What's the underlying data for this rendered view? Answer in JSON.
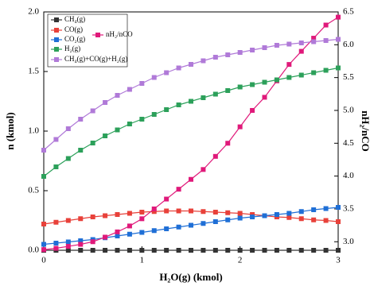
{
  "chart_data": {
    "type": "line",
    "x_label": "H₂O(g) (kmol)",
    "y_label": "n (kmol)",
    "y2_label": "nH₂/nCO",
    "x": [
      0,
      0.125,
      0.25,
      0.375,
      0.5,
      0.625,
      0.75,
      0.875,
      1,
      1.125,
      1.25,
      1.375,
      1.5,
      1.625,
      1.75,
      1.875,
      2,
      2.125,
      2.25,
      2.375,
      2.5,
      2.625,
      2.75,
      2.875,
      3
    ],
    "xlim": [
      0,
      3
    ],
    "xticks": [
      0,
      1,
      2,
      3
    ],
    "ylim": [
      0,
      2
    ],
    "yticks": [
      {
        "value": 0,
        "label": "0.0"
      },
      0.5,
      {
        "value": 1,
        "label": "1.0"
      },
      1.5,
      {
        "value": 2,
        "label": "2.0"
      }
    ],
    "y2lim": [
      2.87,
      6.5
    ],
    "y2ticks": [
      {
        "value": 3,
        "label": "3.0"
      },
      3.5,
      {
        "value": 4,
        "label": "4.0"
      },
      4.5,
      {
        "value": 5,
        "label": "5.0"
      },
      5.5,
      {
        "value": 6,
        "label": "6.0"
      },
      6.5
    ],
    "series": [
      {
        "name": "CH₄(g)",
        "color": "#333333",
        "values": [
          0,
          0,
          0,
          0,
          0,
          0,
          0,
          0,
          0,
          0,
          0,
          0,
          0,
          0,
          0,
          0,
          0,
          0,
          0,
          0,
          0,
          0,
          0,
          0,
          0
        ]
      },
      {
        "name": "CO(g)",
        "color": "#e8413a",
        "values": [
          0.22,
          0.235,
          0.25,
          0.265,
          0.28,
          0.29,
          0.3,
          0.31,
          0.32,
          0.325,
          0.33,
          0.33,
          0.33,
          0.325,
          0.32,
          0.315,
          0.31,
          0.3,
          0.29,
          0.28,
          0.275,
          0.265,
          0.255,
          0.25,
          0.24
        ]
      },
      {
        "name": "CO₂(g)",
        "color": "#1f6fd6",
        "values": [
          0.05,
          0.06,
          0.07,
          0.08,
          0.09,
          0.105,
          0.12,
          0.135,
          0.15,
          0.165,
          0.18,
          0.195,
          0.21,
          0.225,
          0.24,
          0.255,
          0.27,
          0.28,
          0.29,
          0.3,
          0.31,
          0.325,
          0.34,
          0.35,
          0.36
        ]
      },
      {
        "name": "nH₂/nCO",
        "color": "#e0197a",
        "axis": "y2",
        "values": [
          2.88,
          2.9,
          2.93,
          2.96,
          3.0,
          3.07,
          3.15,
          3.24,
          3.35,
          3.5,
          3.65,
          3.8,
          3.95,
          4.1,
          4.3,
          4.5,
          4.75,
          5.0,
          5.2,
          5.45,
          5.7,
          5.9,
          6.1,
          6.3,
          6.42
        ]
      },
      {
        "name": "H₂(g)",
        "color": "#2ca05a",
        "values": [
          0.62,
          0.7,
          0.77,
          0.84,
          0.9,
          0.96,
          1.01,
          1.06,
          1.1,
          1.14,
          1.18,
          1.22,
          1.25,
          1.28,
          1.31,
          1.34,
          1.37,
          1.39,
          1.41,
          1.43,
          1.45,
          1.47,
          1.49,
          1.51,
          1.53
        ]
      },
      {
        "name": "CH₄(g)+CO(g)+H₂(g)",
        "color": "#b07ad8",
        "values": [
          0.84,
          0.93,
          1.02,
          1.1,
          1.17,
          1.24,
          1.3,
          1.35,
          1.4,
          1.45,
          1.49,
          1.53,
          1.56,
          1.59,
          1.62,
          1.64,
          1.66,
          1.68,
          1.7,
          1.72,
          1.73,
          1.74,
          1.75,
          1.76,
          1.77
        ]
      }
    ]
  }
}
